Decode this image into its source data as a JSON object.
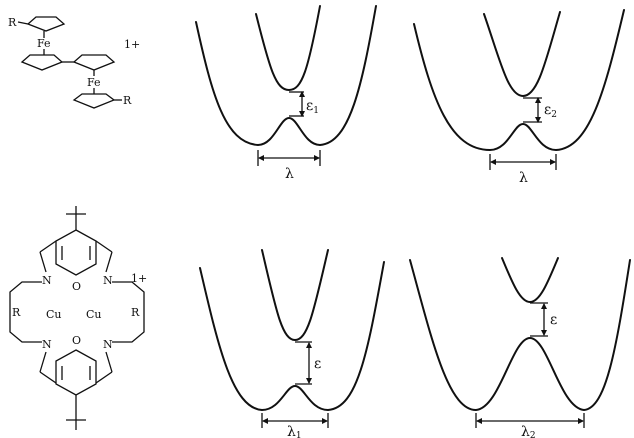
{
  "molecules": {
    "top": {
      "substituent_1": "R",
      "substituent_2": "R",
      "metal_1": "Fe",
      "metal_2": "Fe",
      "charge": "1+"
    },
    "bottom": {
      "substituent_left": "R",
      "substituent_right": "R",
      "metal_1": "Cu",
      "metal_2": "Cu",
      "oxygen_top": "O",
      "oxygen_bottom": "O",
      "nitrogen_tl": "N",
      "nitrogen_tr": "N",
      "nitrogen_bl": "N",
      "nitrogen_br": "N",
      "charge": "1+"
    }
  },
  "panels": {
    "top_left": {
      "gap_symbol": "ε",
      "gap_subscript": "1",
      "width_symbol": "λ",
      "width_subscript": ""
    },
    "top_right": {
      "gap_symbol": "ε",
      "gap_subscript": "2",
      "width_symbol": "λ",
      "width_subscript": ""
    },
    "bottom_left": {
      "gap_symbol": "ε",
      "gap_subscript": "",
      "width_symbol": "λ",
      "width_subscript": "1"
    },
    "bottom_right": {
      "gap_symbol": "ε",
      "gap_subscript": "",
      "width_symbol": "λ",
      "width_subscript": "2"
    }
  }
}
